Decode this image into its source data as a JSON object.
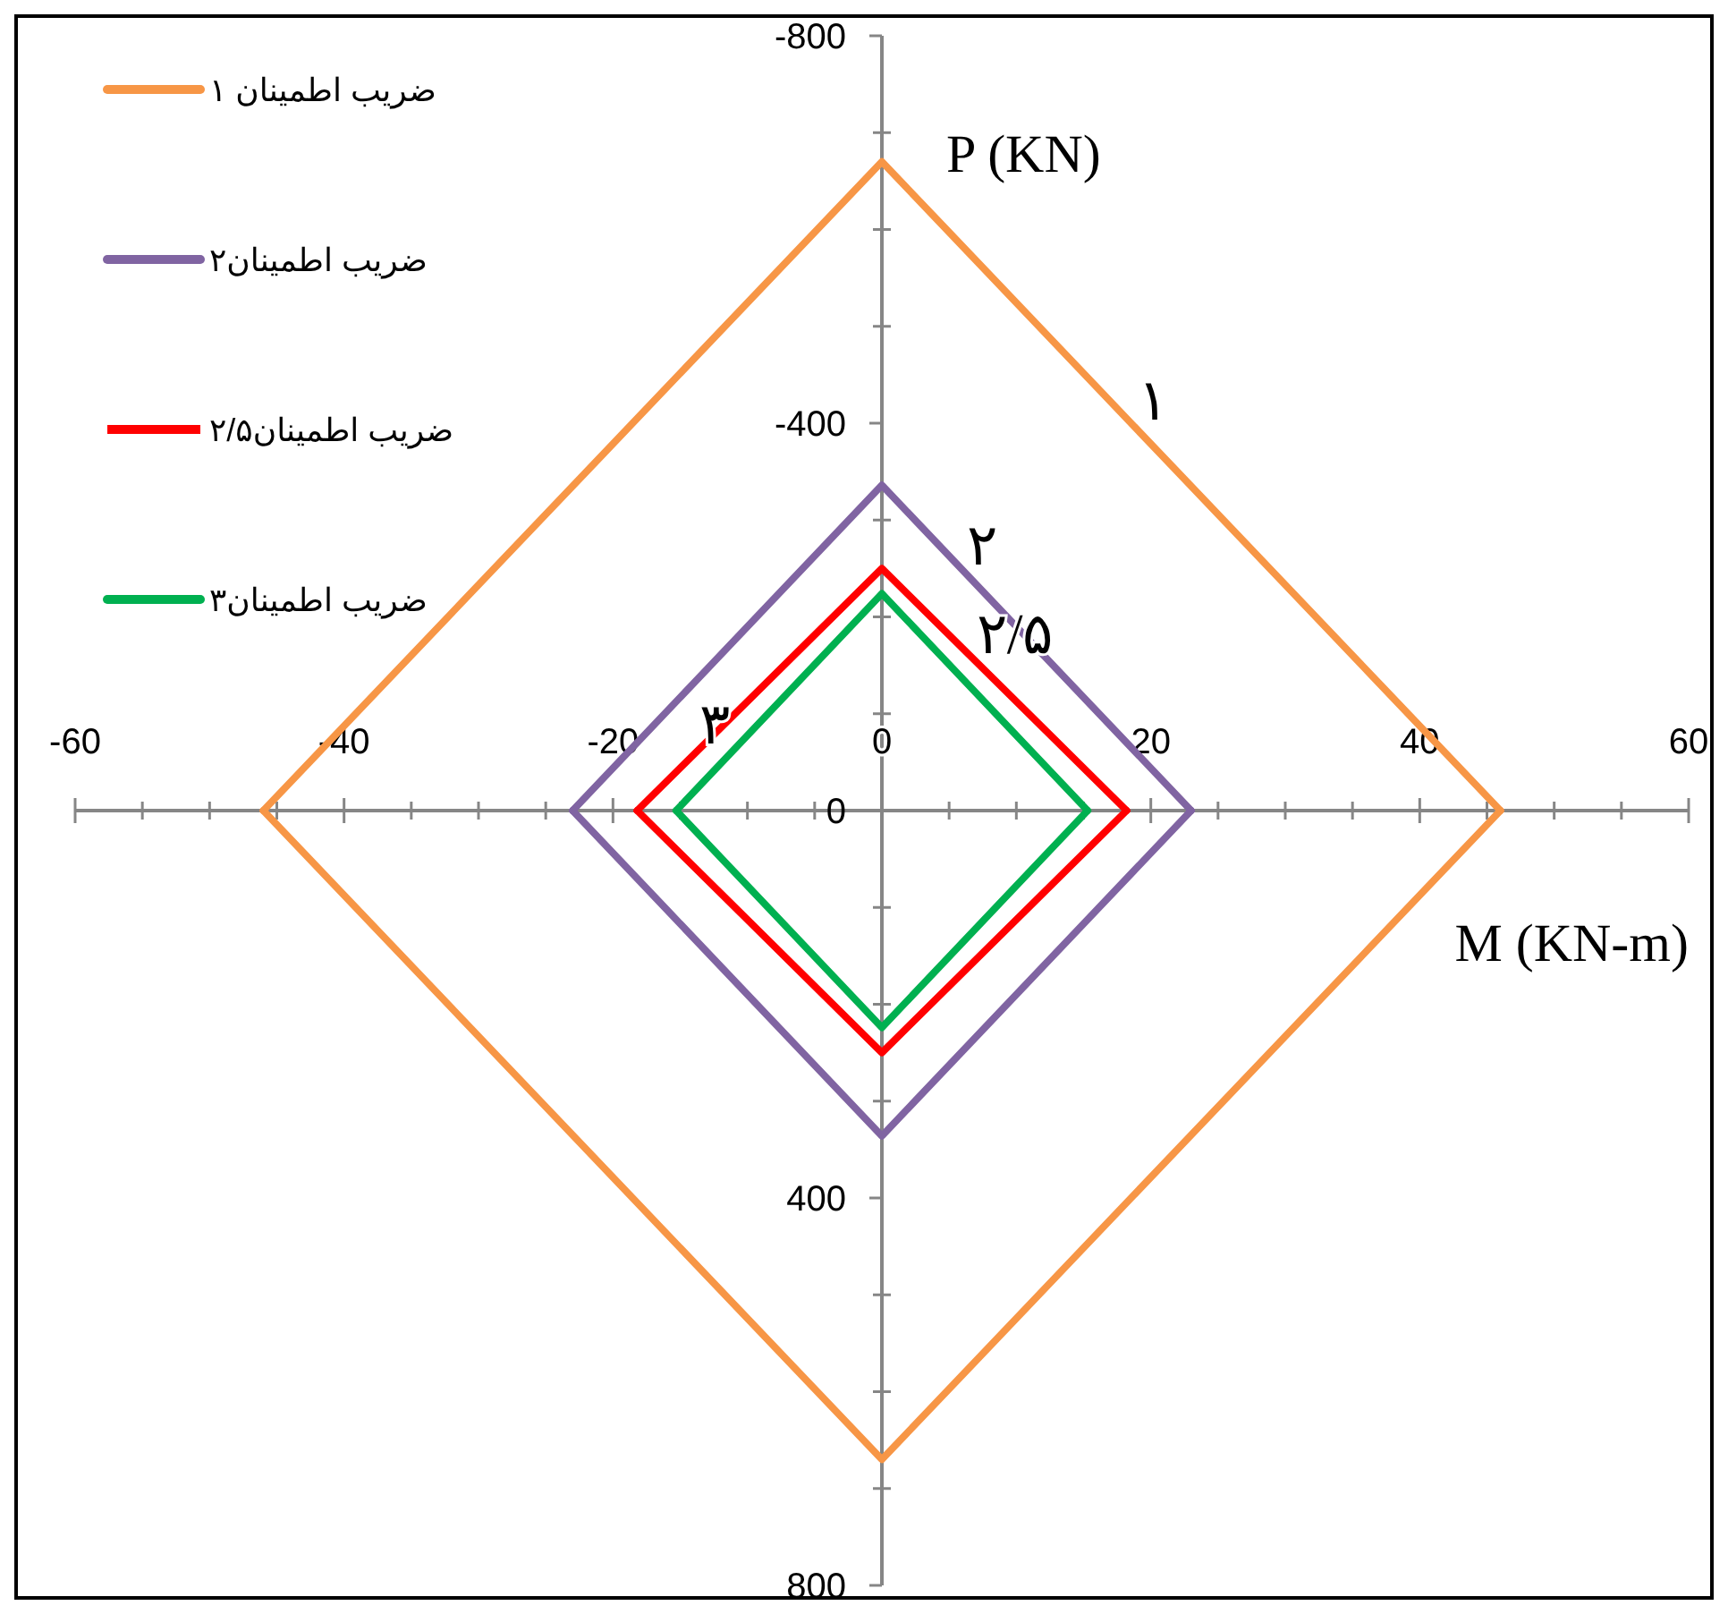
{
  "chart_data": {
    "type": "line",
    "xlabel": "M (KN-m)",
    "ylabel": "P (KN)",
    "xlim": [
      -60,
      60
    ],
    "xticks": [
      -60,
      {
        "value": -55,
        "label": null
      },
      {
        "value": -50,
        "label": null
      },
      {
        "value": -45,
        "label": null
      },
      -40,
      {
        "value": -35,
        "label": null
      },
      {
        "value": -30,
        "label": null
      },
      {
        "value": -25,
        "label": null
      },
      -20,
      {
        "value": -15,
        "label": null
      },
      {
        "value": -10,
        "label": null
      },
      {
        "value": -5,
        "label": null
      },
      0,
      {
        "value": 5,
        "label": null
      },
      {
        "value": 10,
        "label": null
      },
      {
        "value": 15,
        "label": null
      },
      20,
      {
        "value": 25,
        "label": null
      },
      {
        "value": 30,
        "label": null
      },
      {
        "value": 35,
        "label": null
      },
      40,
      {
        "value": 45,
        "label": null
      },
      {
        "value": 50,
        "label": null
      },
      {
        "value": 55,
        "label": null
      },
      60
    ],
    "ylim": [
      800,
      -800
    ],
    "yticks": [
      -800,
      {
        "value": -700,
        "label": null
      },
      {
        "value": -600,
        "label": null
      },
      {
        "value": -500,
        "label": null
      },
      -400,
      {
        "value": -300,
        "label": null
      },
      {
        "value": -200,
        "label": null
      },
      {
        "value": -100,
        "label": null
      },
      0,
      {
        "value": 100,
        "label": null
      },
      {
        "value": 200,
        "label": null
      },
      {
        "value": 300,
        "label": null
      },
      400,
      {
        "value": 500,
        "label": null
      },
      {
        "value": 600,
        "label": null
      },
      {
        "value": 700,
        "label": null
      },
      800
    ],
    "grid": false,
    "legend": "top left",
    "marker": "none",
    "line_style": "solid",
    "series": [
      {
        "name": "ضریب اطمینان ۱",
        "color": "#f79646",
        "x": [
          -46,
          0,
          46
        ],
        "values": [
          0,
          -670,
          0
        ]
      },
      {
        "color": "#f79646",
        "x": [
          -46,
          0,
          46
        ],
        "values": [
          0,
          670,
          0
        ]
      },
      {
        "name": "ضریب اطمینان۲",
        "color": "#8064a2",
        "x": [
          -23,
          0,
          23
        ],
        "values": [
          0,
          -336,
          0
        ]
      },
      {
        "color": "#8064a2",
        "x": [
          -23,
          0,
          23
        ],
        "values": [
          0,
          336,
          0
        ]
      },
      {
        "name": "ضریب اطمینان۲/۵",
        "color": "#ff0000",
        "x": [
          -18.2,
          0,
          18.2
        ],
        "values": [
          0,
          -250,
          0
        ]
      },
      {
        "color": "#ff0000",
        "x": [
          -18.2,
          0,
          18.2
        ],
        "values": [
          0,
          250,
          0
        ]
      },
      {
        "name": "ضریب اطمینان۳",
        "color": "#00b050",
        "x": [
          -15.3,
          0,
          15.3
        ],
        "values": [
          0,
          -224,
          0
        ]
      },
      {
        "color": "#00b050",
        "x": [
          -15.3,
          0,
          15.3
        ],
        "values": [
          0,
          224,
          0
        ]
      }
    ],
    "annotations": [
      {
        "text": "۱",
        "x": 16.9,
        "y": -424
      },
      {
        "text": "۲",
        "x": 4.2,
        "y": -275
      },
      {
        "text": "۲/۵",
        "x": 4.9,
        "y": -183
      },
      {
        "text": "۳",
        "x": -9.15,
        "y": -90
      }
    ]
  }
}
